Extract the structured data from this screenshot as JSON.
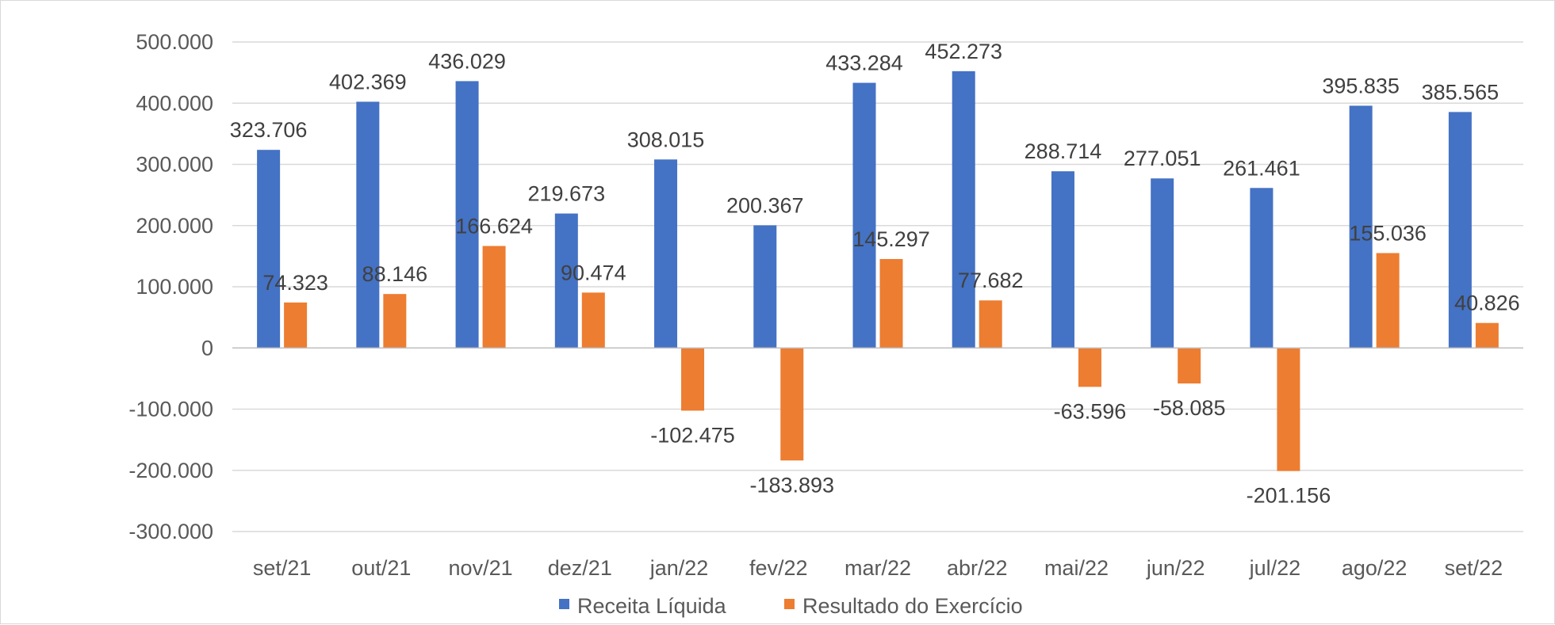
{
  "chart_data": {
    "type": "bar",
    "categories": [
      "set/21",
      "out/21",
      "nov/21",
      "dez/21",
      "jan/22",
      "fev/22",
      "mar/22",
      "abr/22",
      "mai/22",
      "jun/22",
      "jul/22",
      "ago/22",
      "set/22"
    ],
    "series": [
      {
        "name": "Receita Líquida",
        "color": "#4472C4",
        "values": [
          323706,
          402369,
          436029,
          219673,
          308015,
          200367,
          433284,
          452273,
          288714,
          277051,
          261461,
          395835,
          385565
        ],
        "labels": [
          "323.706",
          "402.369",
          "436.029",
          "219.673",
          "308.015",
          "200.367",
          "433.284",
          "452.273",
          "288.714",
          "277.051",
          "261.461",
          "395.835",
          "385.565"
        ]
      },
      {
        "name": "Resultado do Exercício",
        "color": "#ED7D31",
        "values": [
          74323,
          88146,
          166624,
          90474,
          -102475,
          -183893,
          145297,
          77682,
          -63596,
          -58085,
          -201156,
          155036,
          40826
        ],
        "labels": [
          "74.323",
          "88.146",
          "166.624",
          "90.474",
          "-102.475",
          "-183.893",
          "145.297",
          "77.682",
          "-63.596",
          "-58.085",
          "-201.156",
          "155.036",
          "40.826"
        ]
      }
    ],
    "ylim": [
      -300000,
      500000
    ],
    "yticks": [
      500000,
      400000,
      300000,
      200000,
      100000,
      0,
      -100000,
      -200000,
      -300000
    ],
    "ytick_labels": [
      "500.000",
      "400.000",
      "300.000",
      "200.000",
      "100.000",
      "0",
      "-100.000",
      "-200.000",
      "-300.000"
    ],
    "grid": true,
    "legend": "bottom"
  }
}
